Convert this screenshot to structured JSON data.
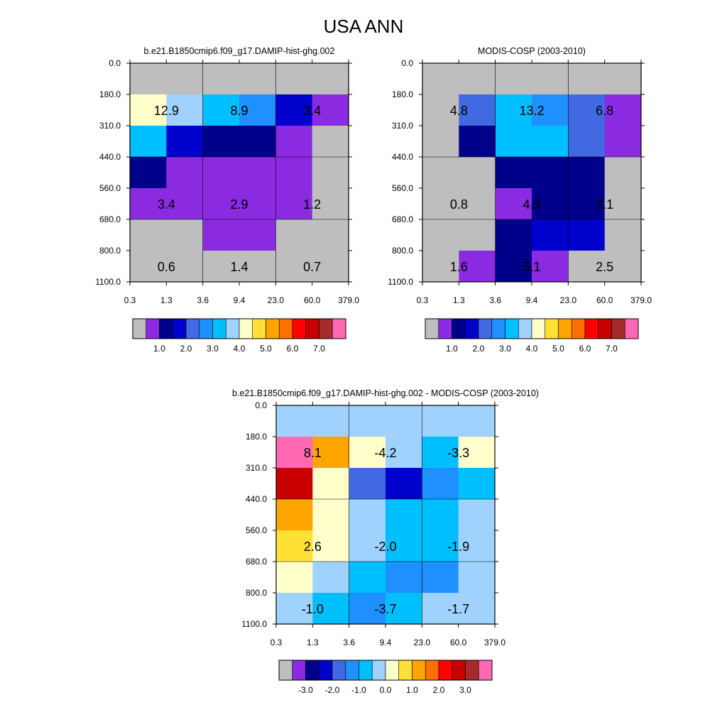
{
  "figure_title": "USA ANN",
  "chart_data": {
    "type": "heatmap",
    "title": "USA ANN",
    "x_tick_labels": [
      "0.3",
      "1.3",
      "3.6",
      "9.4",
      "23.0",
      "60.0",
      "379.0"
    ],
    "y_tick_labels": [
      "0.0",
      "180.0",
      "310.0",
      "440.0",
      "560.0",
      "680.0",
      "800.0",
      "1100.0"
    ],
    "panels": [
      {
        "id": "model",
        "title": "b.e21.B1850cmip6.f09_g17.DAMIP-hist-ghg.002",
        "colors": [
          [
            "#bebebe",
            "#bebebe",
            "#bebebe",
            "#bebebe",
            "#bebebe",
            "#bebebe"
          ],
          [
            "#ffffcc",
            "#a0d2ff",
            "#00bfff",
            "#1e90ff",
            "#0000cd",
            "#8a2be2"
          ],
          [
            "#00bfff",
            "#0000cd",
            "#00008b",
            "#00008b",
            "#8a2be2",
            "#bebebe"
          ],
          [
            "#00008b",
            "#8a2be2",
            "#8a2be2",
            "#8a2be2",
            "#8a2be2",
            "#bebebe"
          ],
          [
            "#8a2be2",
            "#8a2be2",
            "#8a2be2",
            "#8a2be2",
            "#8a2be2",
            "#bebebe"
          ],
          [
            "#bebebe",
            "#bebebe",
            "#8a2be2",
            "#8a2be2",
            "#bebebe",
            "#bebebe"
          ],
          [
            "#bebebe",
            "#bebebe",
            "#bebebe",
            "#bebebe",
            "#bebebe",
            "#bebebe"
          ]
        ],
        "labels": [
          {
            "text": "12.9",
            "row": 1,
            "col": 1
          },
          {
            "text": "8.9",
            "row": 1,
            "col": 3
          },
          {
            "text": "3.4",
            "row": 1,
            "col": 5
          },
          {
            "text": "3.4",
            "row": 4,
            "col": 1
          },
          {
            "text": "2.9",
            "row": 4,
            "col": 3
          },
          {
            "text": "1.2",
            "row": 4,
            "col": 5
          },
          {
            "text": "0.6",
            "row": 6,
            "col": 1
          },
          {
            "text": "1.4",
            "row": 6,
            "col": 3
          },
          {
            "text": "0.7",
            "row": 6,
            "col": 5
          }
        ],
        "colorbar": {
          "colors": [
            "#bebebe",
            "#8a2be2",
            "#00008b",
            "#0000cd",
            "#4169e1",
            "#1e90ff",
            "#00bfff",
            "#a0d2ff",
            "#ffffcc",
            "#ffe135",
            "#ffa500",
            "#ff7000",
            "#ff0000",
            "#c80000",
            "#a52a2a",
            "#ff69b4"
          ],
          "labels": [
            "1.0",
            "2.0",
            "3.0",
            "4.0",
            "5.0",
            "6.0",
            "7.0"
          ],
          "label_positions": [
            2,
            4,
            6,
            8,
            10,
            12,
            14
          ]
        }
      },
      {
        "id": "obs",
        "title": "MODIS-COSP (2003-2010)",
        "colors": [
          [
            "#bebebe",
            "#bebebe",
            "#bebebe",
            "#bebebe",
            "#bebebe",
            "#bebebe"
          ],
          [
            "#bebebe",
            "#4169e1",
            "#00bfff",
            "#1e90ff",
            "#4169e1",
            "#8a2be2"
          ],
          [
            "#bebebe",
            "#00008b",
            "#00bfff",
            "#00bfff",
            "#4169e1",
            "#8a2be2"
          ],
          [
            "#bebebe",
            "#bebebe",
            "#00008b",
            "#00008b",
            "#00008b",
            "#bebebe"
          ],
          [
            "#bebebe",
            "#bebebe",
            "#8a2be2",
            "#00008b",
            "#00008b",
            "#bebebe"
          ],
          [
            "#bebebe",
            "#bebebe",
            "#00008b",
            "#0000cd",
            "#0000cd",
            "#bebebe"
          ],
          [
            "#bebebe",
            "#8a2be2",
            "#00008b",
            "#8a2be2",
            "#bebebe",
            "#bebebe"
          ]
        ],
        "labels": [
          {
            "text": "4.8",
            "row": 1,
            "col": 1
          },
          {
            "text": "13.2",
            "row": 1,
            "col": 3
          },
          {
            "text": "6.8",
            "row": 1,
            "col": 5
          },
          {
            "text": "0.8",
            "row": 4,
            "col": 1
          },
          {
            "text": "4.9",
            "row": 4,
            "col": 3
          },
          {
            "text": "3.1",
            "row": 4,
            "col": 5
          },
          {
            "text": "1.6",
            "row": 6,
            "col": 1
          },
          {
            "text": "5.1",
            "row": 6,
            "col": 3
          },
          {
            "text": "2.5",
            "row": 6,
            "col": 5
          }
        ],
        "colorbar": {
          "colors": [
            "#bebebe",
            "#8a2be2",
            "#00008b",
            "#0000cd",
            "#4169e1",
            "#1e90ff",
            "#00bfff",
            "#a0d2ff",
            "#ffffcc",
            "#ffe135",
            "#ffa500",
            "#ff7000",
            "#ff0000",
            "#c80000",
            "#a52a2a",
            "#ff69b4"
          ],
          "labels": [
            "1.0",
            "2.0",
            "3.0",
            "4.0",
            "5.0",
            "6.0",
            "7.0"
          ],
          "label_positions": [
            2,
            4,
            6,
            8,
            10,
            12,
            14
          ]
        }
      },
      {
        "id": "diff",
        "title": "b.e21.B1850cmip6.f09_g17.DAMIP-hist-ghg.002 - MODIS-COSP (2003-2010)",
        "colors": [
          [
            "#a0d2ff",
            "#a0d2ff",
            "#a0d2ff",
            "#a0d2ff",
            "#a0d2ff",
            "#a0d2ff"
          ],
          [
            "#ff69b4",
            "#ffa500",
            "#ffffcc",
            "#a0d2ff",
            "#00bfff",
            "#ffffcc"
          ],
          [
            "#c80000",
            "#ffffcc",
            "#4169e1",
            "#0000cd",
            "#1e90ff",
            "#00bfff"
          ],
          [
            "#ffa500",
            "#ffffcc",
            "#a0d2ff",
            "#00bfff",
            "#00bfff",
            "#a0d2ff"
          ],
          [
            "#ffe135",
            "#ffffcc",
            "#a0d2ff",
            "#00bfff",
            "#00bfff",
            "#a0d2ff"
          ],
          [
            "#ffffcc",
            "#a0d2ff",
            "#00bfff",
            "#1e90ff",
            "#1e90ff",
            "#a0d2ff"
          ],
          [
            "#a0d2ff",
            "#00bfff",
            "#1e90ff",
            "#00bfff",
            "#a0d2ff",
            "#a0d2ff"
          ]
        ],
        "labels": [
          {
            "text": "8.1",
            "row": 1,
            "col": 1
          },
          {
            "text": "-4.2",
            "row": 1,
            "col": 3
          },
          {
            "text": "-3.3",
            "row": 1,
            "col": 5
          },
          {
            "text": "2.6",
            "row": 4,
            "col": 1
          },
          {
            "text": "-2.0",
            "row": 4,
            "col": 3
          },
          {
            "text": "-1.9",
            "row": 4,
            "col": 5
          },
          {
            "text": "-1.0",
            "row": 6,
            "col": 1
          },
          {
            "text": "-3.7",
            "row": 6,
            "col": 3
          },
          {
            "text": "-1.7",
            "row": 6,
            "col": 5
          }
        ],
        "colorbar": {
          "colors": [
            "#bebebe",
            "#8a2be2",
            "#00008b",
            "#0000cd",
            "#4169e1",
            "#1e90ff",
            "#00bfff",
            "#a0d2ff",
            "#ffffcc",
            "#ffe135",
            "#ffa500",
            "#ff7000",
            "#ff0000",
            "#c80000",
            "#a52a2a",
            "#ff69b4"
          ],
          "labels": [
            "-3.0",
            "-2.0",
            "-1.0",
            "0.0",
            "1.0",
            "2.0",
            "3.0"
          ],
          "label_positions": [
            2,
            4,
            6,
            8,
            10,
            12,
            14
          ]
        }
      }
    ]
  }
}
